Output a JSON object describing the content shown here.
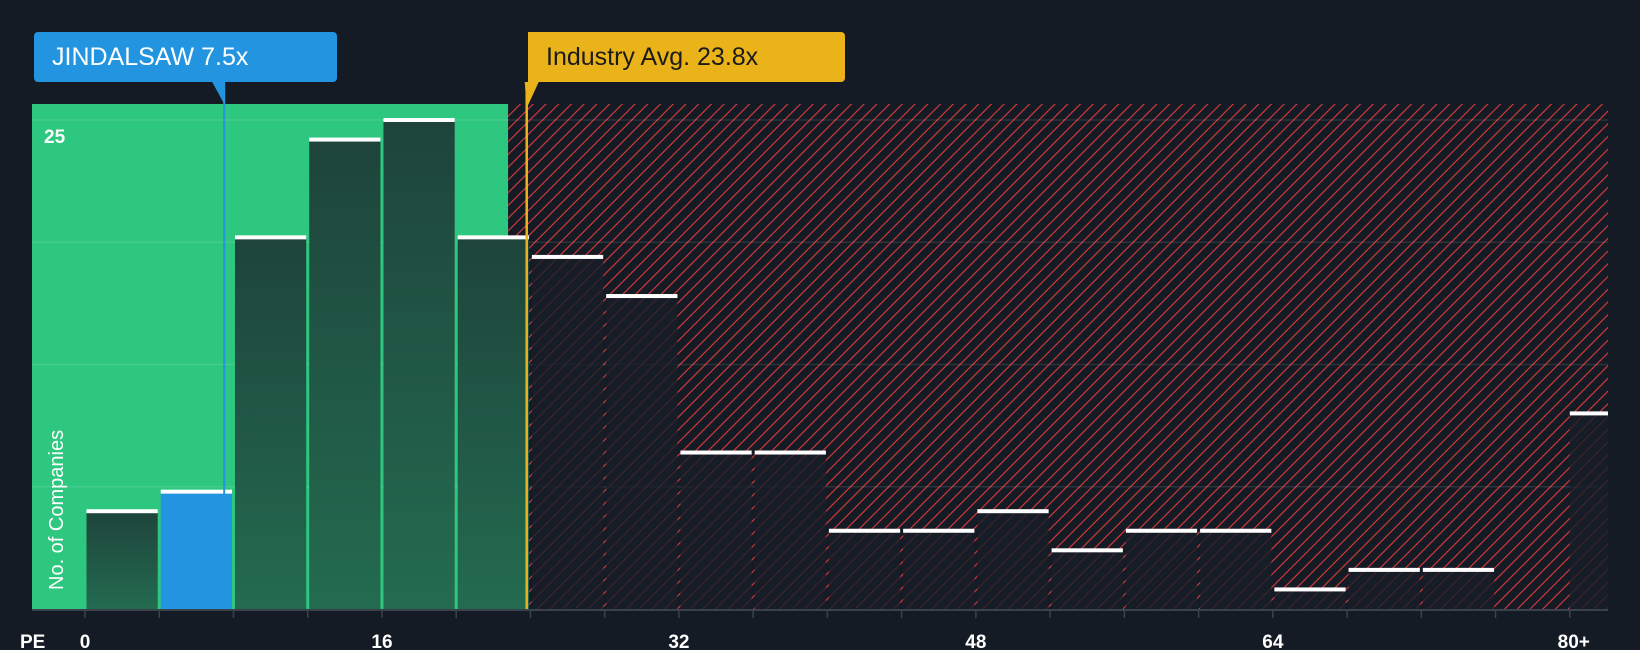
{
  "chart_data": {
    "type": "bar",
    "title": "",
    "xlabel": "PE",
    "ylabel": "No. of Companies",
    "x_tick_labels": [
      "0",
      "16",
      "32",
      "48",
      "64",
      "80+"
    ],
    "y_tick_labels": [
      "25"
    ],
    "ylim": [
      0,
      26
    ],
    "bin_width": 4,
    "bins": [
      {
        "from": 0,
        "to": 4,
        "value": 5
      },
      {
        "from": 4,
        "to": 8,
        "value": 6,
        "highlight": true
      },
      {
        "from": 8,
        "to": 12,
        "value": 19
      },
      {
        "from": 12,
        "to": 16,
        "value": 24
      },
      {
        "from": 16,
        "to": 20,
        "value": 25
      },
      {
        "from": 20,
        "to": 24,
        "value": 19
      },
      {
        "from": 24,
        "to": 28,
        "value": 18
      },
      {
        "from": 28,
        "to": 32,
        "value": 16
      },
      {
        "from": 32,
        "to": 36,
        "value": 8
      },
      {
        "from": 36,
        "to": 40,
        "value": 8
      },
      {
        "from": 40,
        "to": 44,
        "value": 4
      },
      {
        "from": 44,
        "to": 48,
        "value": 4
      },
      {
        "from": 48,
        "to": 52,
        "value": 5
      },
      {
        "from": 52,
        "to": 56,
        "value": 3
      },
      {
        "from": 56,
        "to": 60,
        "value": 4
      },
      {
        "from": 60,
        "to": 64,
        "value": 4
      },
      {
        "from": 64,
        "to": 68,
        "value": 1
      },
      {
        "from": 68,
        "to": 72,
        "value": 2
      },
      {
        "from": 72,
        "to": 76,
        "value": 2
      },
      {
        "from": 76,
        "to": 80,
        "value": 0
      },
      {
        "from": 80,
        "to": 82.2,
        "value": 10,
        "label": "80+"
      }
    ],
    "company": {
      "label": "JINDALSAW 7.5x",
      "value": 7.5
    },
    "industry_avg": {
      "label": "Industry Avg. 23.8x",
      "value": 23.8
    },
    "fair_zone_end": 22.8,
    "colors": {
      "background": "#151b24",
      "fair": "#2ec77f",
      "expensive": "#e0393e",
      "company": "#2394e0",
      "industry": "#ebb31a",
      "bar": "#1f4a3f"
    }
  }
}
